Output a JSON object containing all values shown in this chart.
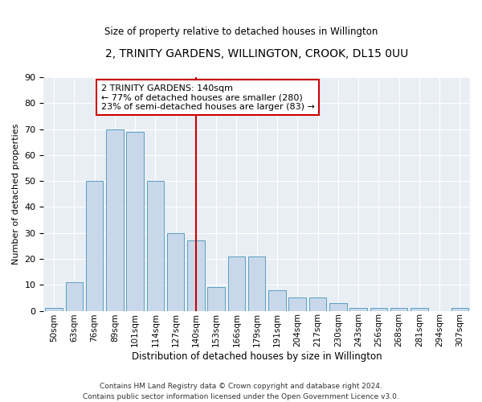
{
  "title": "2, TRINITY GARDENS, WILLINGTON, CROOK, DL15 0UU",
  "subtitle": "Size of property relative to detached houses in Willington",
  "xlabel": "Distribution of detached houses by size in Willington",
  "ylabel": "Number of detached properties",
  "bar_labels": [
    "50sqm",
    "63sqm",
    "76sqm",
    "89sqm",
    "101sqm",
    "114sqm",
    "127sqm",
    "140sqm",
    "153sqm",
    "166sqm",
    "179sqm",
    "191sqm",
    "204sqm",
    "217sqm",
    "230sqm",
    "243sqm",
    "256sqm",
    "268sqm",
    "281sqm",
    "294sqm",
    "307sqm"
  ],
  "bar_values": [
    1,
    11,
    50,
    70,
    69,
    50,
    30,
    27,
    9,
    21,
    21,
    8,
    5,
    5,
    3,
    1,
    1,
    1,
    1,
    0,
    1
  ],
  "bar_color": "#c8d8ea",
  "bar_edge_color": "#5a9fc0",
  "vline_x": 7,
  "vline_color": "#cc0000",
  "annotation_text": "2 TRINITY GARDENS: 140sqm\n← 77% of detached houses are smaller (280)\n23% of semi-detached houses are larger (83) →",
  "annotation_box_color": "#ffffff",
  "annotation_box_edge": "#cc0000",
  "ylim": [
    0,
    90
  ],
  "yticks": [
    0,
    10,
    20,
    30,
    40,
    50,
    60,
    70,
    80,
    90
  ],
  "bg_color": "#e8eef4",
  "footer": "Contains HM Land Registry data © Crown copyright and database right 2024.\nContains public sector information licensed under the Open Government Licence v3.0."
}
